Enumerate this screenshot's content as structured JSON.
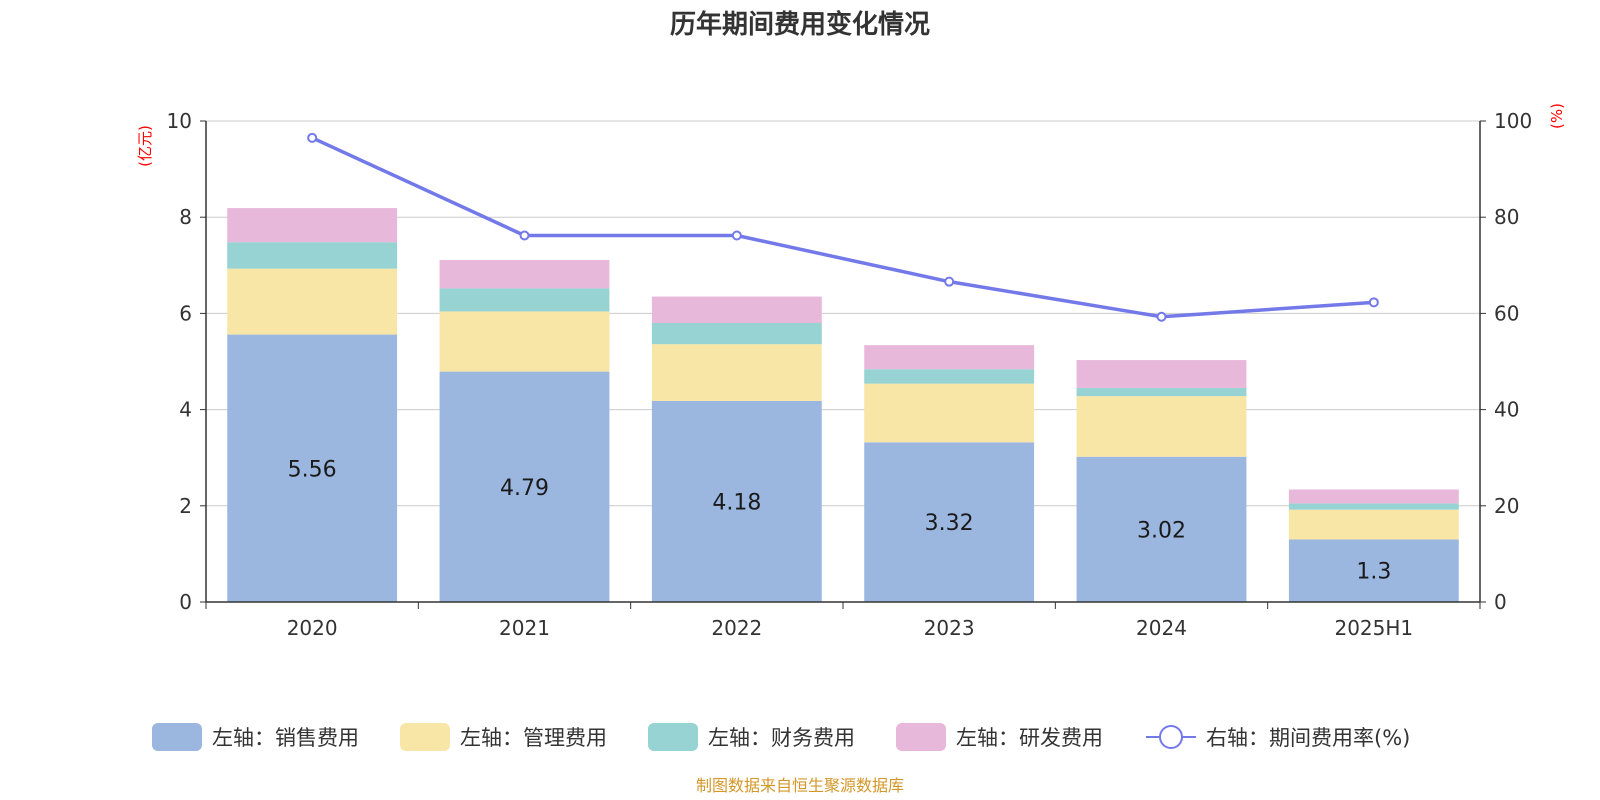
{
  "colors": {
    "sales": "#9bb7e0",
    "admin": "#f8e6a7",
    "finance": "#97d3d2",
    "rnd": "#e7b8da",
    "rate": "#7479ea",
    "grid": "#cccccc",
    "axis": "#333333",
    "unit": "#ff0000",
    "source": "#d4972a"
  },
  "chart_data": {
    "type": "bar",
    "stacked": true,
    "title": "历年期间费用变化情况",
    "categories": [
      "2020",
      "2021",
      "2022",
      "2023",
      "2024",
      "2025H1"
    ],
    "left_axis": {
      "unit_label": "(亿元)",
      "ylim": [
        0,
        10
      ],
      "ticks": [
        "0",
        "2",
        "4",
        "6",
        "8",
        "10"
      ]
    },
    "right_axis": {
      "unit_label": "(%)",
      "ylim": [
        0,
        100
      ],
      "ticks": [
        "0",
        "20",
        "40",
        "60",
        "80",
        "100"
      ]
    },
    "grid": true,
    "legend_position": "bottom",
    "series": [
      {
        "key": "sales",
        "name": "左轴：销售费用",
        "axis": "left",
        "type": "bar",
        "values": [
          5.56,
          4.79,
          4.18,
          3.32,
          3.02,
          1.3
        ],
        "labels": [
          "5.56",
          "4.79",
          "4.18",
          "3.32",
          "3.02",
          "1.3"
        ]
      },
      {
        "key": "admin",
        "name": "左轴：管理费用",
        "axis": "left",
        "type": "bar",
        "values": [
          1.37,
          1.25,
          1.18,
          1.22,
          1.26,
          0.62
        ]
      },
      {
        "key": "finance",
        "name": "左轴：财务费用",
        "axis": "left",
        "type": "bar",
        "values": [
          0.55,
          0.48,
          0.44,
          0.3,
          0.17,
          0.13
        ]
      },
      {
        "key": "rnd",
        "name": "左轴：研发费用",
        "axis": "left",
        "type": "bar",
        "values": [
          0.71,
          0.59,
          0.55,
          0.5,
          0.58,
          0.29
        ]
      },
      {
        "key": "rate",
        "name": "右轴：期间费用率(%)",
        "axis": "right",
        "type": "line",
        "values": [
          96.5,
          76.2,
          76.2,
          66.6,
          59.3,
          62.3
        ]
      }
    ]
  },
  "source": "制图数据来自恒生聚源数据库"
}
